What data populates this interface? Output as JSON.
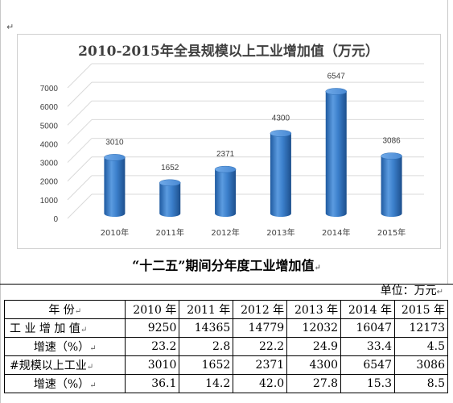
{
  "document": {
    "para_mark": "↵",
    "subtitle": "“十二五”期间分年度工业增加值",
    "unit": "单位：万元"
  },
  "chart_data": {
    "type": "bar",
    "title": "2010-2015年全县规模以上工业增加值（万元）",
    "categories": [
      "2010年",
      "2011年",
      "2012年",
      "2013年",
      "2014年",
      "2015年"
    ],
    "values": [
      3010,
      1652,
      2371,
      4300,
      6547,
      3086
    ],
    "ylim": [
      0,
      7000
    ],
    "yticks": [
      0,
      1000,
      2000,
      3000,
      4000,
      5000,
      6000,
      7000
    ],
    "grid": true,
    "bar_color": "#3a7fcb"
  },
  "table": {
    "header": [
      "年    份",
      "2010 年",
      "2011 年",
      "2012 年",
      "2013 年",
      "2014 年",
      "2015 年"
    ],
    "rows": [
      {
        "label": "工 业 增 加 值",
        "values": [
          "9250",
          "14365",
          "14779",
          "12032",
          "16047",
          "12173"
        ]
      },
      {
        "label": "增速（%）",
        "values": [
          "23.2",
          "2.8",
          "22.2",
          "24.9",
          "33.4",
          "4.5"
        ]
      },
      {
        "label": "#规模以上工业",
        "values": [
          "3010",
          "1652",
          "2371",
          "4300",
          "6547",
          "3086"
        ]
      },
      {
        "label": "增速（%）",
        "values": [
          "36.1",
          "14.2",
          "42.0",
          "27.8",
          "15.3",
          "8.5"
        ]
      }
    ]
  }
}
